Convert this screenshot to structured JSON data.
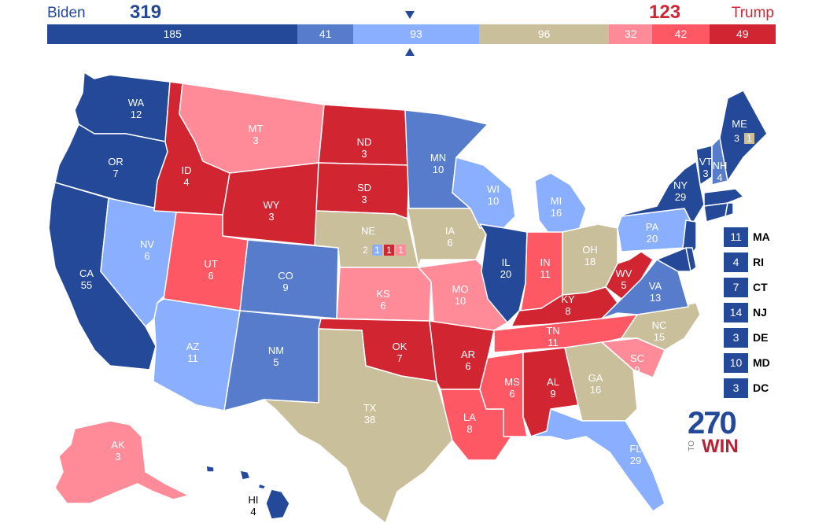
{
  "header": {
    "biden_label": "Biden",
    "trump_label": "Trump",
    "biden_total": "319",
    "trump_total": "123"
  },
  "colors": {
    "safe_dem": "#244999",
    "likely_dem": "#577ccc",
    "lean_dem": "#8aafff",
    "tossup": "#c9c09b",
    "lean_rep": "#ff8b98",
    "likely_rep": "#ff5865",
    "safe_rep": "#d22532"
  },
  "rating_bar": [
    {
      "label": "185",
      "value": 185,
      "category": "safe_dem"
    },
    {
      "label": "41",
      "value": 41,
      "category": "likely_dem"
    },
    {
      "label": "93",
      "value": 93,
      "category": "lean_dem"
    },
    {
      "label": "96",
      "value": 96,
      "category": "tossup"
    },
    {
      "label": "32",
      "value": 32,
      "category": "lean_rep"
    },
    {
      "label": "42",
      "value": 42,
      "category": "likely_rep"
    },
    {
      "label": "49",
      "value": 49,
      "category": "safe_rep"
    }
  ],
  "states": {
    "WA": {
      "abbr": "WA",
      "ev": "12",
      "cat": "safe_dem"
    },
    "OR": {
      "abbr": "OR",
      "ev": "7",
      "cat": "safe_dem"
    },
    "CA": {
      "abbr": "CA",
      "ev": "55",
      "cat": "safe_dem"
    },
    "NV": {
      "abbr": "NV",
      "ev": "6",
      "cat": "lean_dem"
    },
    "ID": {
      "abbr": "ID",
      "ev": "4",
      "cat": "safe_rep"
    },
    "MT": {
      "abbr": "MT",
      "ev": "3",
      "cat": "lean_rep"
    },
    "WY": {
      "abbr": "WY",
      "ev": "3",
      "cat": "safe_rep"
    },
    "UT": {
      "abbr": "UT",
      "ev": "6",
      "cat": "likely_rep"
    },
    "AZ": {
      "abbr": "AZ",
      "ev": "11",
      "cat": "lean_dem"
    },
    "CO": {
      "abbr": "CO",
      "ev": "9",
      "cat": "likely_dem"
    },
    "NM": {
      "abbr": "NM",
      "ev": "5",
      "cat": "likely_dem"
    },
    "ND": {
      "abbr": "ND",
      "ev": "3",
      "cat": "safe_rep"
    },
    "SD": {
      "abbr": "SD",
      "ev": "3",
      "cat": "safe_rep"
    },
    "NE": {
      "abbr": "NE",
      "ev": "",
      "cat": "tossup"
    },
    "KS": {
      "abbr": "KS",
      "ev": "6",
      "cat": "lean_rep"
    },
    "OK": {
      "abbr": "OK",
      "ev": "7",
      "cat": "safe_rep"
    },
    "TX": {
      "abbr": "TX",
      "ev": "38",
      "cat": "tossup"
    },
    "MN": {
      "abbr": "MN",
      "ev": "10",
      "cat": "likely_dem"
    },
    "IA": {
      "abbr": "IA",
      "ev": "6",
      "cat": "tossup"
    },
    "MO": {
      "abbr": "MO",
      "ev": "10",
      "cat": "lean_rep"
    },
    "AR": {
      "abbr": "AR",
      "ev": "6",
      "cat": "safe_rep"
    },
    "LA": {
      "abbr": "LA",
      "ev": "8",
      "cat": "likely_rep"
    },
    "WI": {
      "abbr": "WI",
      "ev": "10",
      "cat": "lean_dem"
    },
    "IL": {
      "abbr": "IL",
      "ev": "20",
      "cat": "safe_dem"
    },
    "MI": {
      "abbr": "MI",
      "ev": "16",
      "cat": "lean_dem"
    },
    "IN": {
      "abbr": "IN",
      "ev": "11",
      "cat": "likely_rep"
    },
    "OH": {
      "abbr": "OH",
      "ev": "18",
      "cat": "tossup"
    },
    "KY": {
      "abbr": "KY",
      "ev": "8",
      "cat": "safe_rep"
    },
    "TN": {
      "abbr": "TN",
      "ev": "11",
      "cat": "likely_rep"
    },
    "MS": {
      "abbr": "MS",
      "ev": "6",
      "cat": "likely_rep"
    },
    "AL": {
      "abbr": "AL",
      "ev": "9",
      "cat": "safe_rep"
    },
    "GA": {
      "abbr": "GA",
      "ev": "16",
      "cat": "tossup"
    },
    "FL": {
      "abbr": "FL",
      "ev": "29",
      "cat": "lean_dem"
    },
    "SC": {
      "abbr": "SC",
      "ev": "9",
      "cat": "lean_rep"
    },
    "NC": {
      "abbr": "NC",
      "ev": "15",
      "cat": "tossup"
    },
    "VA": {
      "abbr": "VA",
      "ev": "13",
      "cat": "likely_dem"
    },
    "WV": {
      "abbr": "WV",
      "ev": "5",
      "cat": "safe_rep"
    },
    "PA": {
      "abbr": "PA",
      "ev": "20",
      "cat": "lean_dem"
    },
    "NY": {
      "abbr": "NY",
      "ev": "29",
      "cat": "safe_dem"
    },
    "VT": {
      "abbr": "VT",
      "ev": "3",
      "cat": "safe_dem"
    },
    "NH": {
      "abbr": "NH",
      "ev": "4",
      "cat": "likely_dem"
    },
    "ME": {
      "abbr": "ME",
      "ev": "",
      "cat": "safe_dem"
    },
    "AK": {
      "abbr": "AK",
      "ev": "3",
      "cat": "lean_rep"
    },
    "HI": {
      "abbr": "HI",
      "ev": "4",
      "cat": "safe_dem"
    }
  },
  "nebraska_split": [
    {
      "value": "2",
      "cat": "tossup"
    },
    {
      "value": "1",
      "cat": "lean_dem"
    },
    {
      "value": "1",
      "cat": "safe_rep"
    },
    {
      "value": "1",
      "cat": "lean_rep"
    }
  ],
  "maine_split": [
    {
      "value": "3",
      "cat": "safe_dem"
    },
    {
      "value": "1",
      "cat": "tossup"
    }
  ],
  "small_states": [
    {
      "ev": "11",
      "abbr": "MA",
      "cat": "safe_dem"
    },
    {
      "ev": "4",
      "abbr": "RI",
      "cat": "safe_dem"
    },
    {
      "ev": "7",
      "abbr": "CT",
      "cat": "safe_dem"
    },
    {
      "ev": "14",
      "abbr": "NJ",
      "cat": "safe_dem"
    },
    {
      "ev": "3",
      "abbr": "DE",
      "cat": "safe_dem"
    },
    {
      "ev": "10",
      "abbr": "MD",
      "cat": "safe_dem"
    },
    {
      "ev": "3",
      "abbr": "DC",
      "cat": "safe_dem"
    }
  ],
  "logo": {
    "number": "270",
    "to": "TO",
    "win": "WIN"
  }
}
